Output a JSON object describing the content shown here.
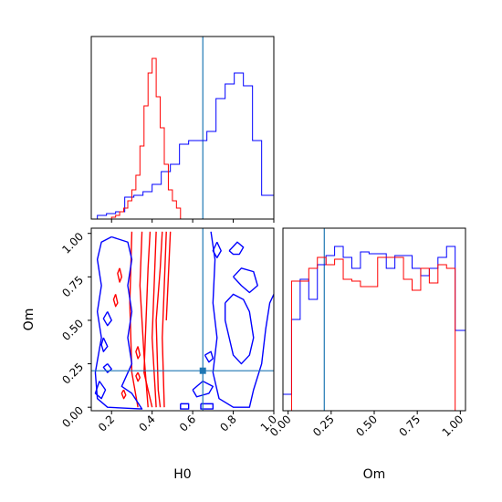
{
  "chart_data": {
    "type": "corner",
    "parameters": [
      "H0",
      "Om"
    ],
    "truths": {
      "H0": 0.65,
      "Om": 0.21
    },
    "colors": {
      "series_a": "#0000ff",
      "series_b": "#ff0000",
      "truth": "#1f77b4"
    },
    "panels": [
      {
        "id": "hist_H0",
        "type": "step_histogram",
        "x_range": [
          0.1,
          1.0
        ],
        "y_range": [
          0,
          1.0
        ],
        "show_tick_labels": false,
        "x_ticks": [
          0.2,
          0.4,
          0.6,
          0.8,
          1.0
        ],
        "series": [
          {
            "color_key": "series_a",
            "edges": [
              0.13,
              0.175,
              0.22,
              0.265,
              0.31,
              0.355,
              0.4,
              0.445,
              0.49,
              0.535,
              0.58,
              0.625,
              0.67,
              0.715,
              0.76,
              0.805,
              0.85,
              0.895,
              0.94,
              0.985,
              1.0
            ],
            "values": [
              0.02,
              0.03,
              0.04,
              0.12,
              0.13,
              0.15,
              0.19,
              0.26,
              0.3,
              0.41,
              0.43,
              0.43,
              0.48,
              0.66,
              0.74,
              0.8,
              0.73,
              0.43,
              0.13,
              0.13
            ]
          },
          {
            "color_key": "series_b",
            "edges": [
              0.13,
              0.2,
              0.22,
              0.24,
              0.26,
              0.28,
              0.3,
              0.32,
              0.34,
              0.36,
              0.38,
              0.4,
              0.42,
              0.44,
              0.46,
              0.48,
              0.5,
              0.52,
              0.54,
              1.0
            ],
            "values": [
              0.0,
              0.01,
              0.02,
              0.04,
              0.06,
              0.1,
              0.16,
              0.24,
              0.4,
              0.62,
              0.8,
              0.88,
              0.67,
              0.5,
              0.3,
              0.16,
              0.1,
              0.06,
              0.0
            ]
          }
        ]
      },
      {
        "id": "contour_H0_Om",
        "type": "contour",
        "x_range": [
          0.1,
          1.0
        ],
        "y_range": [
          -0.02,
          1.03
        ],
        "x_ticks": [
          0.2,
          0.4,
          0.6,
          0.8,
          1.0
        ],
        "x_tick_labels": [
          "0.2",
          "0.4",
          "0.6",
          "0.8",
          "1.0"
        ],
        "y_ticks": [
          0.0,
          0.25,
          0.5,
          0.75,
          1.0
        ],
        "y_tick_labels": [
          "0.00",
          "0.25",
          "0.50",
          "0.75",
          "1.00"
        ],
        "xlabel": "H0",
        "ylabel": "Om",
        "truth_marker": {
          "x": 0.65,
          "y": 0.21
        },
        "series": [
          {
            "color_key": "series_b",
            "contours": [
              [
                [
                  0.3,
                  1.01
                ],
                [
                  0.29,
                  0.6
                ],
                [
                  0.3,
                  0.2
                ],
                [
                  0.33,
                  0.0
                ]
              ],
              [
                [
                  0.35,
                  1.01
                ],
                [
                  0.34,
                  0.7
                ],
                [
                  0.36,
                  0.3
                ],
                [
                  0.38,
                  0.0
                ]
              ],
              [
                [
                  0.39,
                  1.01
                ],
                [
                  0.38,
                  0.8
                ],
                [
                  0.37,
                  0.5
                ],
                [
                  0.36,
                  0.2
                ],
                [
                  0.4,
                  0.0
                ]
              ],
              [
                [
                  0.42,
                  1.01
                ],
                [
                  0.41,
                  0.7
                ],
                [
                  0.4,
                  0.4
                ],
                [
                  0.42,
                  0.0
                ]
              ],
              [
                [
                  0.45,
                  1.01
                ],
                [
                  0.44,
                  0.8
                ],
                [
                  0.42,
                  0.5
                ],
                [
                  0.43,
                  0.1
                ],
                [
                  0.44,
                  0.0
                ]
              ],
              [
                [
                  0.47,
                  1.01
                ],
                [
                  0.46,
                  0.7
                ],
                [
                  0.45,
                  0.4
                ],
                [
                  0.46,
                  0.0
                ]
              ],
              [
                [
                  0.49,
                  1.01
                ],
                [
                  0.48,
                  0.75
                ],
                [
                  0.47,
                  0.5
                ]
              ],
              [
                [
                  0.24,
                  0.8
                ],
                [
                  0.25,
                  0.75
                ],
                [
                  0.24,
                  0.72
                ],
                [
                  0.23,
                  0.77
                ],
                [
                  0.24,
                  0.8
                ]
              ],
              [
                [
                  0.22,
                  0.65
                ],
                [
                  0.23,
                  0.6
                ],
                [
                  0.22,
                  0.58
                ],
                [
                  0.21,
                  0.62
                ],
                [
                  0.22,
                  0.65
                ]
              ],
              [
                [
                  0.33,
                  0.35
                ],
                [
                  0.34,
                  0.3
                ],
                [
                  0.33,
                  0.28
                ],
                [
                  0.32,
                  0.32
                ],
                [
                  0.33,
                  0.35
                ]
              ],
              [
                [
                  0.33,
                  0.2
                ],
                [
                  0.34,
                  0.17
                ],
                [
                  0.33,
                  0.15
                ],
                [
                  0.32,
                  0.18
                ],
                [
                  0.33,
                  0.2
                ]
              ],
              [
                [
                  0.26,
                  0.1
                ],
                [
                  0.27,
                  0.07
                ],
                [
                  0.26,
                  0.05
                ],
                [
                  0.25,
                  0.08
                ],
                [
                  0.26,
                  0.1
                ]
              ]
            ]
          },
          {
            "color_key": "series_a",
            "contours": [
              [
                [
                  0.2,
                  0.98
                ],
                [
                  0.15,
                  0.95
                ],
                [
                  0.13,
                  0.85
                ],
                [
                  0.15,
                  0.7
                ],
                [
                  0.13,
                  0.55
                ],
                [
                  0.15,
                  0.4
                ],
                [
                  0.12,
                  0.2
                ],
                [
                  0.13,
                  0.05
                ],
                [
                  0.18,
                  0.0
                ],
                [
                  0.35,
                  -0.01
                ],
                [
                  0.3,
                  0.08
                ],
                [
                  0.25,
                  0.12
                ],
                [
                  0.3,
                  0.25
                ],
                [
                  0.28,
                  0.4
                ],
                [
                  0.3,
                  0.55
                ],
                [
                  0.28,
                  0.7
                ],
                [
                  0.3,
                  0.85
                ],
                [
                  0.28,
                  0.95
                ],
                [
                  0.2,
                  0.98
                ]
              ],
              [
                [
                  0.14,
                  0.15
                ],
                [
                  0.17,
                  0.1
                ],
                [
                  0.15,
                  0.05
                ],
                [
                  0.12,
                  0.08
                ],
                [
                  0.14,
                  0.15
                ]
              ],
              [
                [
                  0.18,
                  0.55
                ],
                [
                  0.2,
                  0.5
                ],
                [
                  0.18,
                  0.47
                ],
                [
                  0.16,
                  0.51
                ],
                [
                  0.18,
                  0.55
                ]
              ],
              [
                [
                  0.18,
                  0.25
                ],
                [
                  0.2,
                  0.22
                ],
                [
                  0.18,
                  0.2
                ],
                [
                  0.16,
                  0.23
                ],
                [
                  0.18,
                  0.25
                ]
              ],
              [
                [
                  0.16,
                  0.4
                ],
                [
                  0.18,
                  0.35
                ],
                [
                  0.16,
                  0.32
                ],
                [
                  0.15,
                  0.36
                ],
                [
                  0.16,
                  0.4
                ]
              ],
              [
                [
                  0.69,
                  1.01
                ],
                [
                  0.71,
                  0.85
                ],
                [
                  0.7,
                  0.6
                ],
                [
                  0.72,
                  0.4
                ],
                [
                  0.7,
                  0.2
                ],
                [
                  0.73,
                  0.05
                ],
                [
                  0.8,
                  0.0
                ],
                [
                  0.88,
                  0.0
                ],
                [
                  0.9,
                  0.1
                ],
                [
                  0.94,
                  0.25
                ],
                [
                  0.96,
                  0.45
                ],
                [
                  0.98,
                  0.6
                ],
                [
                  1.0,
                  0.65
                ]
              ],
              [
                [
                  0.78,
                  0.9
                ],
                [
                  0.82,
                  0.95
                ],
                [
                  0.85,
                  0.92
                ],
                [
                  0.83,
                  0.88
                ],
                [
                  0.8,
                  0.88
                ],
                [
                  0.78,
                  0.9
                ]
              ],
              [
                [
                  0.72,
                  0.95
                ],
                [
                  0.74,
                  0.9
                ],
                [
                  0.72,
                  0.86
                ],
                [
                  0.7,
                  0.9
                ],
                [
                  0.72,
                  0.95
                ]
              ],
              [
                [
                  0.76,
                  0.6
                ],
                [
                  0.8,
                  0.65
                ],
                [
                  0.85,
                  0.62
                ],
                [
                  0.88,
                  0.55
                ],
                [
                  0.9,
                  0.4
                ],
                [
                  0.88,
                  0.3
                ],
                [
                  0.84,
                  0.25
                ],
                [
                  0.8,
                  0.3
                ],
                [
                  0.78,
                  0.4
                ],
                [
                  0.76,
                  0.5
                ],
                [
                  0.76,
                  0.6
                ]
              ],
              [
                [
                  0.8,
                  0.75
                ],
                [
                  0.84,
                  0.8
                ],
                [
                  0.9,
                  0.78
                ],
                [
                  0.92,
                  0.7
                ],
                [
                  0.88,
                  0.66
                ],
                [
                  0.84,
                  0.7
                ],
                [
                  0.8,
                  0.75
                ]
              ],
              [
                [
                  0.66,
                  0.3
                ],
                [
                  0.69,
                  0.32
                ],
                [
                  0.7,
                  0.28
                ],
                [
                  0.68,
                  0.26
                ],
                [
                  0.66,
                  0.3
                ]
              ],
              [
                [
                  0.6,
                  0.1
                ],
                [
                  0.65,
                  0.15
                ],
                [
                  0.7,
                  0.12
                ],
                [
                  0.68,
                  0.08
                ],
                [
                  0.62,
                  0.06
                ],
                [
                  0.6,
                  0.1
                ]
              ],
              [
                [
                  0.54,
                  0.02
                ],
                [
                  0.58,
                  0.02
                ],
                [
                  0.58,
                  -0.01
                ],
                [
                  0.54,
                  -0.01
                ],
                [
                  0.54,
                  0.02
                ]
              ],
              [
                [
                  0.64,
                  0.02
                ],
                [
                  0.7,
                  0.02
                ],
                [
                  0.7,
                  -0.01
                ],
                [
                  0.64,
                  -0.01
                ],
                [
                  0.64,
                  0.02
                ]
              ]
            ]
          }
        ]
      },
      {
        "id": "hist_Om",
        "type": "step_histogram",
        "x_range": [
          -0.03,
          1.03
        ],
        "y_range": [
          0,
          1.0
        ],
        "x_ticks": [
          0.0,
          0.25,
          0.5,
          0.75,
          1.0
        ],
        "x_tick_labels": [
          "0.00",
          "0.25",
          "0.50",
          "0.75",
          "1.00"
        ],
        "xlabel": "Om",
        "series": [
          {
            "color_key": "series_a",
            "edges": [
              -0.03,
              0.02,
              0.07,
              0.12,
              0.17,
              0.22,
              0.27,
              0.32,
              0.37,
              0.42,
              0.47,
              0.52,
              0.57,
              0.62,
              0.67,
              0.72,
              0.77,
              0.82,
              0.87,
              0.92,
              0.97,
              1.03
            ],
            "values": [
              0.09,
              0.5,
              0.72,
              0.61,
              0.8,
              0.85,
              0.9,
              0.84,
              0.78,
              0.87,
              0.86,
              0.86,
              0.78,
              0.85,
              0.85,
              0.78,
              0.74,
              0.78,
              0.84,
              0.9,
              0.44
            ]
          },
          {
            "color_key": "series_b",
            "edges": [
              -0.03,
              0.02,
              0.07,
              0.12,
              0.17,
              0.22,
              0.27,
              0.32,
              0.37,
              0.42,
              0.47,
              0.52,
              0.57,
              0.62,
              0.67,
              0.72,
              0.77,
              0.82,
              0.87,
              0.92,
              0.97,
              0.99
            ],
            "values": [
              0.0,
              0.71,
              0.71,
              0.78,
              0.84,
              0.8,
              0.83,
              0.72,
              0.71,
              0.68,
              0.68,
              0.84,
              0.84,
              0.84,
              0.72,
              0.66,
              0.78,
              0.7,
              0.8,
              0.78,
              0.0
            ]
          }
        ]
      }
    ]
  }
}
